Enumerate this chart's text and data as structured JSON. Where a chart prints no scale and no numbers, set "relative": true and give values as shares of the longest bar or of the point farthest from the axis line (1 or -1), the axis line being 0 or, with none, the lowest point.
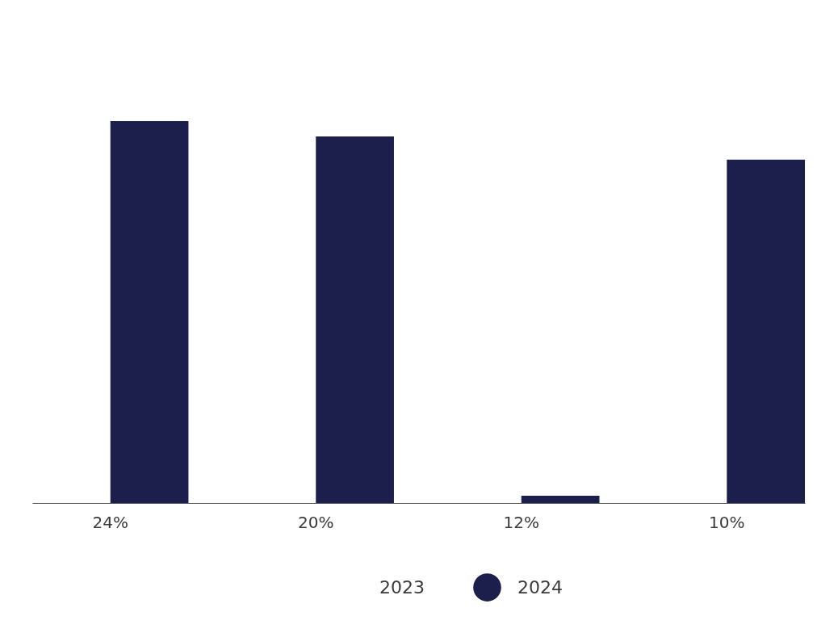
{
  "chart_data": {
    "type": "bar",
    "relative": true,
    "categories": [
      "24%",
      "20%",
      "12%",
      "10%"
    ],
    "series": [
      {
        "name": "2023",
        "values": [
          null,
          null,
          null,
          null
        ]
      },
      {
        "name": "2024",
        "color": "#1c1e4b",
        "values": [
          1,
          0.96,
          0.019,
          0.899
        ]
      }
    ],
    "legend": "bottom",
    "grid": false
  }
}
